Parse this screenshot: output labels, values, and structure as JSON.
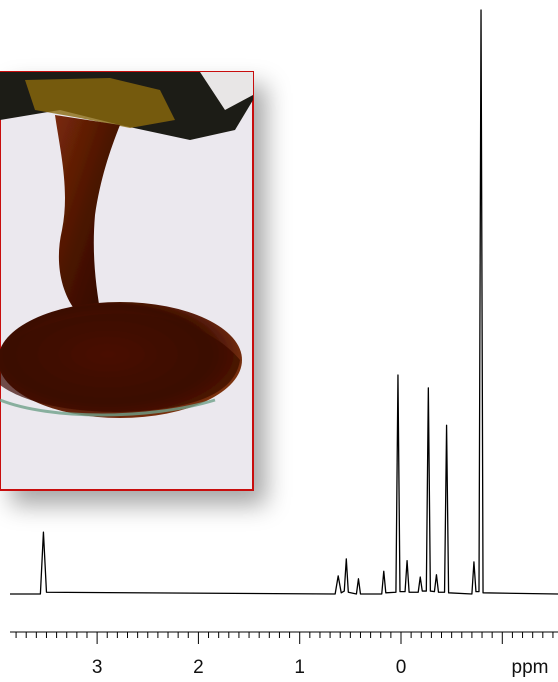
{
  "chart_data": {
    "type": "line",
    "xlabel": "ppm",
    "color": "#000000",
    "xlim": [
      3.86,
      -1.55
    ],
    "ylim": [
      0,
      100
    ],
    "xticks": [
      3,
      2,
      1,
      0
    ],
    "xminorticks": [
      3.8,
      3.7,
      3.6,
      3.5,
      3.4,
      3.3,
      3.2,
      3.1,
      2.9,
      2.8,
      2.7,
      2.6,
      2.5,
      2.4,
      2.3,
      2.2,
      2.1,
      1.9,
      1.8,
      1.7,
      1.6,
      1.5,
      1.4,
      1.3,
      1.2,
      1.1,
      0.9,
      0.8,
      0.7,
      0.6,
      0.5,
      0.4,
      0.3,
      0.2,
      0.1,
      -0.1,
      -0.2,
      -0.3,
      -0.4,
      -0.5,
      -0.6,
      -0.7,
      -0.8,
      -0.9,
      -1,
      -1.1,
      -1.2,
      -1.3,
      -1.4,
      -1.5
    ],
    "x": [
      3.86,
      3.56,
      3.53,
      3.5,
      0.65,
      0.62,
      0.59,
      0.56,
      0.54,
      0.52,
      0.44,
      0.42,
      0.4,
      0.19,
      0.17,
      0.15,
      0.05,
      0.03,
      0.01,
      -0.04,
      -0.06,
      -0.08,
      -0.17,
      -0.19,
      -0.21,
      -0.25,
      -0.27,
      -0.29,
      -0.33,
      -0.35,
      -0.37,
      -0.43,
      -0.45,
      -0.47,
      -0.7,
      -0.72,
      -0.74,
      -0.77,
      -0.79,
      -0.81,
      -1.55
    ],
    "y": [
      0,
      0,
      10.6,
      0.3,
      0,
      3.1,
      0.2,
      0.5,
      6,
      0.3,
      0,
      2.6,
      0,
      0,
      3.9,
      0.2,
      0.3,
      37.5,
      0.4,
      0.4,
      5.7,
      0.3,
      0.3,
      2.9,
      0.5,
      0.5,
      35.3,
      0.5,
      0.4,
      3.3,
      0.3,
      0.3,
      28.9,
      0.2,
      0,
      5.5,
      0.4,
      0.4,
      100,
      0.2,
      0
    ]
  }
}
